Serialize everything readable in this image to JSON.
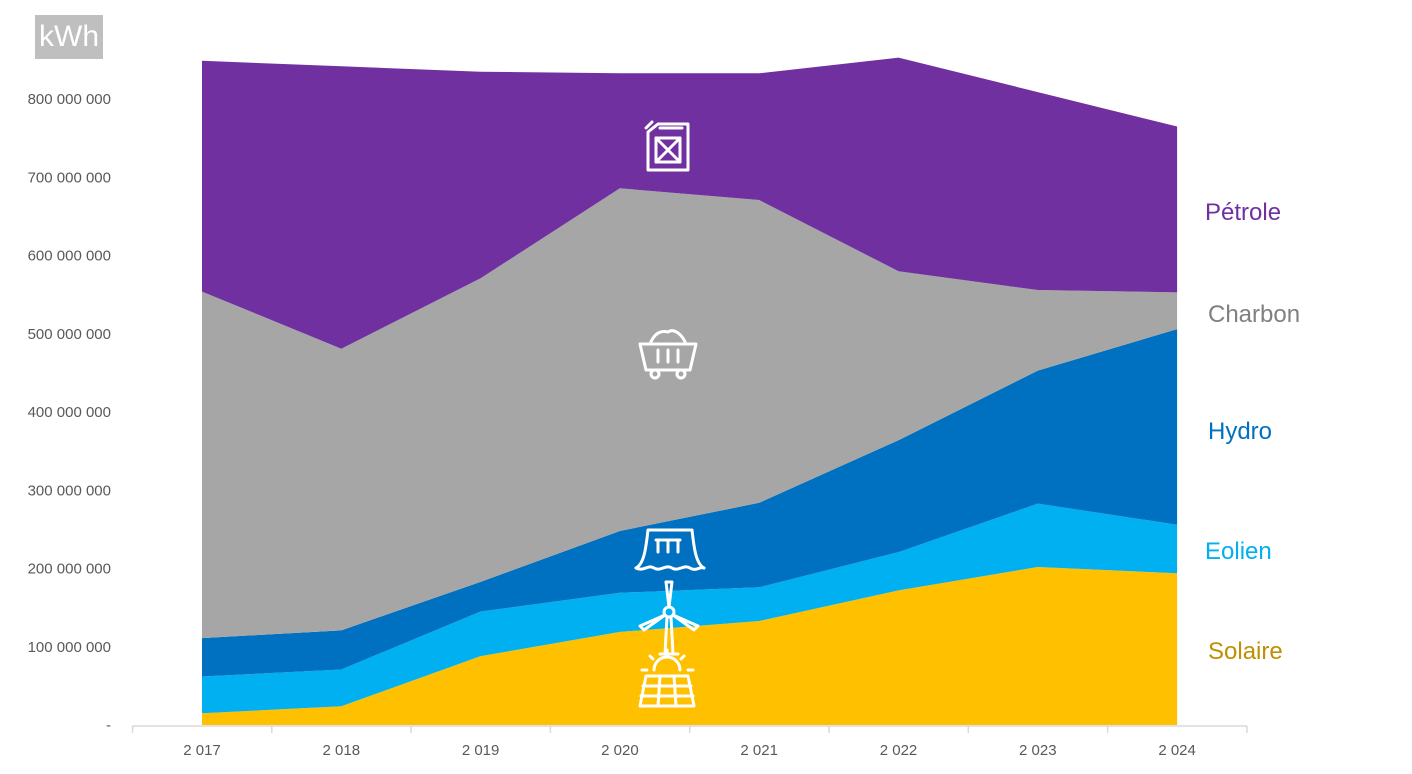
{
  "unit_label": "kWh",
  "chart_data": {
    "type": "area",
    "stacked": true,
    "categories": [
      "2 017",
      "2 018",
      "2 019",
      "2 020",
      "2 021",
      "2 022",
      "2 023",
      "2 024"
    ],
    "ylim": [
      0,
      850000000
    ],
    "yticks": [
      "-",
      "100 000 000",
      "200 000 000",
      "300 000 000",
      "400 000 000",
      "500 000 000",
      "600 000 000",
      "700 000 000",
      "800 000 000"
    ],
    "series": [
      {
        "name": "Solaire",
        "color": "#ffc000",
        "label_color": "#bf9000",
        "icon": "solar-panel-icon",
        "values": [
          15000000,
          24000000,
          88000000,
          119000000,
          133000000,
          172000000,
          202000000,
          194000000
        ]
      },
      {
        "name": "Eolien",
        "color": "#00b0f0",
        "label_color": "#00b0f0",
        "icon": "wind-turbine-icon",
        "values": [
          47000000,
          47000000,
          57000000,
          50000000,
          43000000,
          49000000,
          81000000,
          62000000
        ]
      },
      {
        "name": "Hydro",
        "color": "#0070c0",
        "label_color": "#0070c0",
        "icon": "dam-icon",
        "values": [
          49000000,
          50000000,
          38000000,
          79000000,
          108000000,
          143000000,
          170000000,
          250000000
        ]
      },
      {
        "name": "Charbon",
        "color": "#a6a6a6",
        "label_color": "#808080",
        "icon": "coal-cart-icon",
        "values": [
          443000000,
          360000000,
          388000000,
          438000000,
          387000000,
          216000000,
          103000000,
          47000000
        ]
      },
      {
        "name": "Pétrole",
        "color": "#7030a0",
        "label_color": "#7030a0",
        "icon": "jerrycan-icon",
        "values": [
          295000000,
          361000000,
          264000000,
          147000000,
          162000000,
          273000000,
          253000000,
          212000000
        ]
      }
    ]
  }
}
